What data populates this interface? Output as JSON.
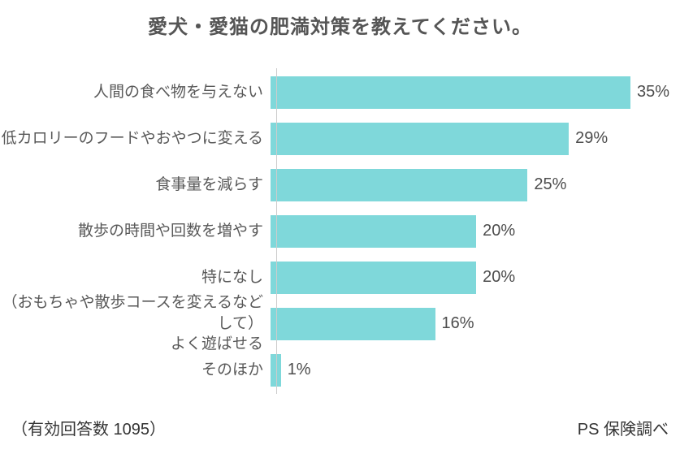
{
  "title": "愛犬・愛猫の肥満対策を教えてください。",
  "chart_data": {
    "type": "bar",
    "orientation": "horizontal",
    "title": "愛犬・愛猫の肥満対策を教えてください。",
    "categories": [
      "人間の食べ物を与えない",
      "低カロリーのフードやおやつに変える",
      "食事量を減らす",
      "散歩の時間や回数を増やす",
      "特になし",
      "（おもちゃや散歩コースを変えるなどして）\nよく遊ばせる",
      "そのほか"
    ],
    "values": [
      35,
      29,
      25,
      20,
      20,
      16,
      1
    ],
    "value_labels": [
      "35%",
      "29%",
      "25%",
      "20%",
      "20%",
      "16%",
      "1%"
    ],
    "xlim": [
      0,
      35
    ],
    "grid": false,
    "legend": false,
    "bar_color": "#7fd8da",
    "axis_line_color": "#cccccc"
  },
  "footer": {
    "left": "（有効回答数 1095）",
    "right": "PS 保険調べ"
  },
  "colors": {
    "background": "#ffffff",
    "title_text": "#555555",
    "category_text": "#595959",
    "value_text": "#4d4d4d",
    "footer_text": "#333333"
  }
}
